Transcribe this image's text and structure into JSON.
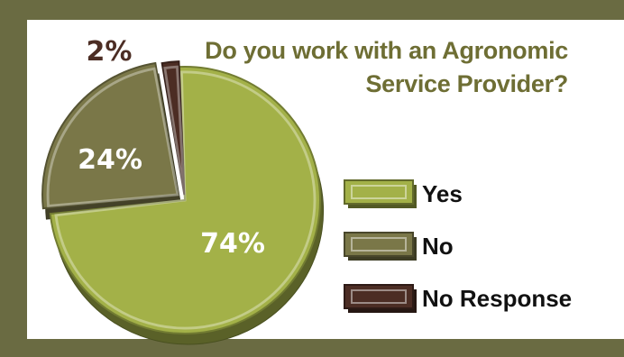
{
  "chart_data": {
    "type": "pie",
    "title_lines": [
      "Do you work with an Agronomic",
      "Service Provider?"
    ],
    "slices": [
      {
        "label": "Yes",
        "value": 74,
        "value_label": "74%",
        "color": "#a3b148"
      },
      {
        "label": "No",
        "value": 24,
        "value_label": "24%",
        "color": "#7a7748"
      },
      {
        "label": "No Response",
        "value": 2,
        "value_label": "2%",
        "color": "#4c2d24"
      }
    ],
    "legend_position": "right"
  },
  "colors": {
    "frame": "#6a6b42",
    "panel": "#ffffff",
    "title": "#6e6e34",
    "pct_light": "#ffffff",
    "pct_dark": "#4c2d24"
  }
}
